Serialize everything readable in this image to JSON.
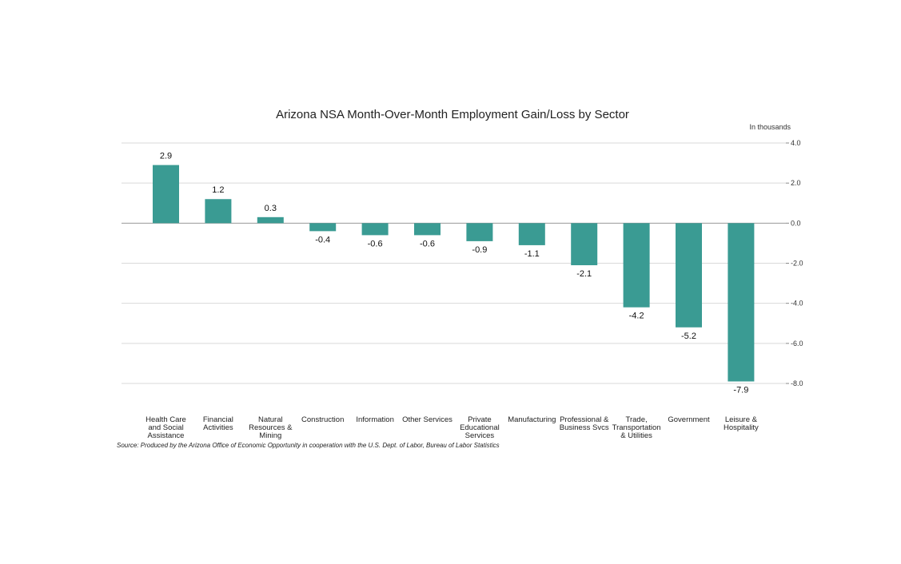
{
  "chart_data": {
    "type": "bar",
    "title": "Arizona NSA Month-Over-Month Employment Gain/Loss by Sector",
    "unit_label": "In thousands",
    "ylim": [
      -8,
      4
    ],
    "yticks": [
      "4.0",
      "2.0",
      "0.0",
      "-2.0",
      "-4.0",
      "-6.0",
      "-8.0"
    ],
    "ytick_values": [
      4,
      2,
      0,
      -2,
      -4,
      -6,
      -8
    ],
    "y_axis_side": "right",
    "grid": true,
    "bar_color": "#3a9b93",
    "categories": [
      [
        "Health Care",
        "and Social",
        "Assistance"
      ],
      [
        "Financial",
        "Activities"
      ],
      [
        "Natural",
        "Resources &",
        "Mining"
      ],
      [
        "Construction"
      ],
      [
        "Information"
      ],
      [
        "Other Services"
      ],
      [
        "Private",
        "Educational",
        "Services"
      ],
      [
        "Manufacturing"
      ],
      [
        "Professional &",
        "Business Svcs"
      ],
      [
        "Trade,",
        "Transportation",
        "& Utilities"
      ],
      [
        "Government"
      ],
      [
        "Leisure &",
        "Hospitality"
      ]
    ],
    "values": [
      2.9,
      1.2,
      0.3,
      -0.4,
      -0.6,
      -0.6,
      -0.9,
      -1.1,
      -2.1,
      -4.2,
      -5.2,
      -7.9
    ],
    "data_labels": [
      "2.9",
      "1.2",
      "0.3",
      "-0.4",
      "-0.6",
      "-0.6",
      "-0.9",
      "-1.1",
      "-2.1",
      "-4.2",
      "-5.2",
      "-7.9"
    ],
    "source": "Source: Produced by the Arizona Office of Economic Opportunity in cooperation with the U.S. Dept. of Labor, Bureau of Labor Statistics"
  }
}
